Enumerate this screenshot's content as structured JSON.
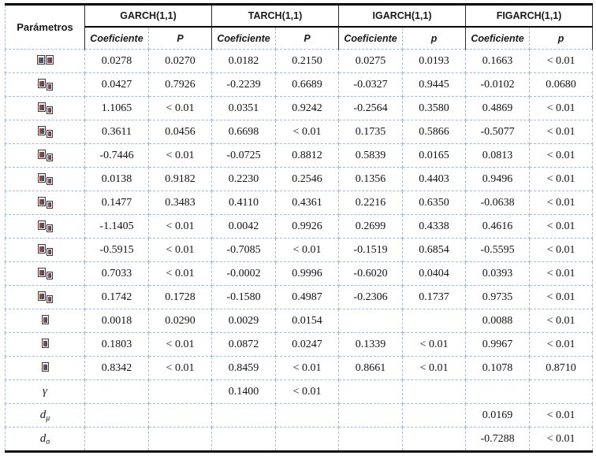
{
  "table": {
    "param_header": "Parámetros",
    "groups": [
      {
        "name": "GARCH(1,1)",
        "coef_label": "Coeficiente",
        "p_label": "P"
      },
      {
        "name": "TARCH(1,1)",
        "coef_label": "Coeficiente",
        "p_label": "P"
      },
      {
        "name": "IGARCH(1,1)",
        "coef_label": "Coeficiente",
        "p_label": "p"
      },
      {
        "name": "FIGARCH(1,1)",
        "coef_label": "Coeficiente",
        "p_label": "p"
      }
    ],
    "rows": [
      {
        "symbol": {
          "kind": "missing-pair"
        },
        "cells": [
          "0.0278",
          "0.0270",
          "0.0182",
          "0.2150",
          "0.0275",
          "0.0193",
          "0.1663",
          "< 0.01"
        ]
      },
      {
        "symbol": {
          "kind": "missing-sub"
        },
        "cells": [
          "0.0427",
          "0.7926",
          "-0.2239",
          "0.6689",
          "-0.0327",
          "0.9445",
          "-0.0102",
          "0.0680"
        ]
      },
      {
        "symbol": {
          "kind": "missing-sub"
        },
        "cells": [
          "1.1065",
          "< 0.01",
          "0.0351",
          "0.9242",
          "-0.2564",
          "0.3580",
          "0.4869",
          "< 0.01"
        ]
      },
      {
        "symbol": {
          "kind": "missing-sub"
        },
        "cells": [
          "0.3611",
          "0.0456",
          "0.6698",
          "< 0.01",
          "0.1735",
          "0.5866",
          "-0.5077",
          "< 0.01"
        ]
      },
      {
        "symbol": {
          "kind": "missing-sub"
        },
        "cells": [
          "-0.7446",
          "< 0.01",
          "-0.0725",
          "0.8812",
          "0.5839",
          "0.0165",
          "0.0813",
          "< 0.01"
        ]
      },
      {
        "symbol": {
          "kind": "missing-sub"
        },
        "cells": [
          "0.0138",
          "0.9182",
          "0.2230",
          "0.2546",
          "0.1356",
          "0.4403",
          "0.9496",
          "< 0.01"
        ]
      },
      {
        "symbol": {
          "kind": "missing-sub"
        },
        "cells": [
          "0.1477",
          "0.3483",
          "0.4110",
          "0.4361",
          "0.2216",
          "0.6350",
          "-0.0638",
          "< 0.01"
        ]
      },
      {
        "symbol": {
          "kind": "missing-sub"
        },
        "cells": [
          "-1.1405",
          "< 0.01",
          "0.0042",
          "0.9926",
          "0.2699",
          "0.4338",
          "0.4616",
          "< 0.01"
        ]
      },
      {
        "symbol": {
          "kind": "missing-sub"
        },
        "cells": [
          "-0.5915",
          "< 0.01",
          "-0.7085",
          "< 0.01",
          "-0.1519",
          "0.6854",
          "-0.5595",
          "< 0.01"
        ]
      },
      {
        "symbol": {
          "kind": "missing-sub"
        },
        "cells": [
          "0.7033",
          "< 0.01",
          "-0.0002",
          "0.9996",
          "-0.6020",
          "0.0404",
          "0.0393",
          "< 0.01"
        ]
      },
      {
        "symbol": {
          "kind": "missing-sub"
        },
        "cells": [
          "0.1742",
          "0.1728",
          "-0.1580",
          "0.4987",
          "-0.2306",
          "0.1737",
          "0.9735",
          "< 0.01"
        ]
      },
      {
        "symbol": {
          "kind": "missing-single"
        },
        "cells": [
          "0.0018",
          "0.0290",
          "0.0029",
          "0.0154",
          "",
          "",
          "0.0088",
          "< 0.01"
        ]
      },
      {
        "symbol": {
          "kind": "missing-single"
        },
        "cells": [
          "0.1803",
          "< 0.01",
          "0.0872",
          "0.0247",
          "0.1339",
          "< 0.01",
          "0.9967",
          "< 0.01"
        ]
      },
      {
        "symbol": {
          "kind": "missing-single"
        },
        "cells": [
          "0.8342",
          "< 0.01",
          "0.8459",
          "< 0.01",
          "0.8661",
          "< 0.01",
          "0.1078",
          "0.8710"
        ]
      },
      {
        "symbol": {
          "kind": "text",
          "base": "γ",
          "sub": ""
        },
        "cells": [
          "",
          "",
          "0.1400",
          "< 0.01",
          "",
          "",
          "",
          ""
        ]
      },
      {
        "symbol": {
          "kind": "text",
          "base": "d",
          "sub": "μ"
        },
        "cells": [
          "",
          "",
          "",
          "",
          "",
          "",
          "0.0169",
          "< 0.01"
        ]
      },
      {
        "symbol": {
          "kind": "text",
          "base": "d",
          "sub": "σ"
        },
        "cells": [
          "",
          "",
          "",
          "",
          "",
          "",
          "-0.7288",
          "< 0.01"
        ]
      }
    ]
  }
}
